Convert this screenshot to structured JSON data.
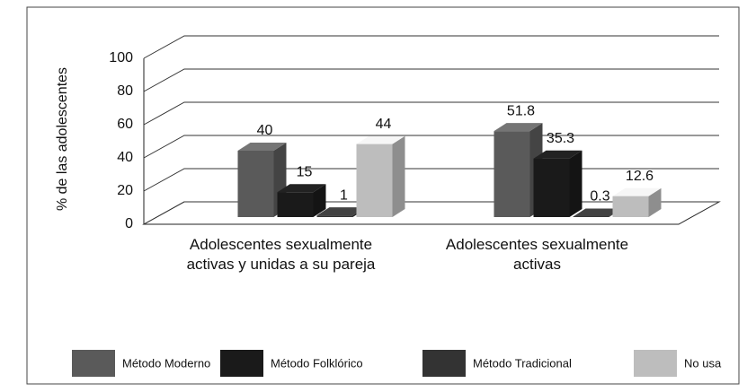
{
  "chart_data": {
    "type": "bar3d",
    "y_label": "% de las adolescentes",
    "categories": [
      "Adolescentes sexualmente activas  y unidas a su pareja",
      "Adolescentes sexualmente activas"
    ],
    "series": [
      {
        "name": "Método Moderno",
        "color": "#5a5a5a",
        "values": [
          40,
          51.8
        ]
      },
      {
        "name": "Método Folklórico",
        "color": "#1a1a1a",
        "values": [
          15,
          35.3
        ]
      },
      {
        "name": "Método Tradicional",
        "color": "#333333",
        "values": [
          1,
          0.3
        ]
      },
      {
        "name": "No usa",
        "color": "#bdbdbd",
        "values": [
          44,
          12.6
        ]
      }
    ],
    "ylim": [
      0,
      100
    ],
    "yticks": [
      0,
      20,
      40,
      60,
      80,
      100
    ],
    "grid": true
  }
}
